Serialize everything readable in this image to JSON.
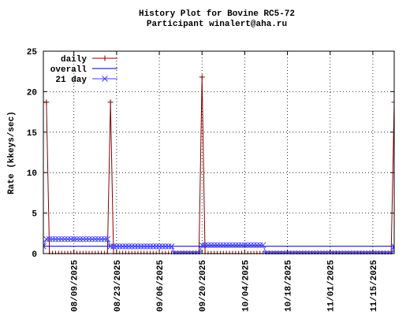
{
  "chart_data": {
    "type": "line",
    "title": "History Plot for Bovine RC5-72",
    "subtitle": "Participant winalert@aha.ru",
    "y_label": "Rate (kkeys/sec)",
    "xlim": [
      "07/30/2025",
      "11/22/2025"
    ],
    "xticks": [
      "08/09/2025",
      "08/23/2025",
      "09/06/2025",
      "09/20/2025",
      "10/04/2025",
      "10/18/2025",
      "11/01/2025",
      "11/15/2025"
    ],
    "ylim": [
      0,
      25
    ],
    "yticks": [
      0,
      5,
      10,
      15,
      20,
      25
    ],
    "grid": true,
    "legend": "top-left",
    "x": [
      "07/30/2025",
      "07/31/2025",
      "08/01/2025",
      "08/02/2025",
      "08/03/2025",
      "08/04/2025",
      "08/05/2025",
      "08/06/2025",
      "08/07/2025",
      "08/08/2025",
      "08/09/2025",
      "08/10/2025",
      "08/11/2025",
      "08/12/2025",
      "08/13/2025",
      "08/14/2025",
      "08/15/2025",
      "08/16/2025",
      "08/17/2025",
      "08/18/2025",
      "08/19/2025",
      "08/20/2025",
      "08/21/2025",
      "08/22/2025",
      "08/23/2025",
      "08/24/2025",
      "08/25/2025",
      "08/26/2025",
      "08/27/2025",
      "08/28/2025",
      "08/29/2025",
      "08/30/2025",
      "08/31/2025",
      "09/01/2025",
      "09/02/2025",
      "09/03/2025",
      "09/04/2025",
      "09/05/2025",
      "09/06/2025",
      "09/07/2025",
      "09/08/2025",
      "09/09/2025",
      "09/10/2025",
      "09/11/2025",
      "09/12/2025",
      "09/13/2025",
      "09/14/2025",
      "09/15/2025",
      "09/16/2025",
      "09/17/2025",
      "09/18/2025",
      "09/19/2025",
      "09/20/2025",
      "09/21/2025",
      "09/22/2025",
      "09/23/2025",
      "09/24/2025",
      "09/25/2025",
      "09/26/2025",
      "09/27/2025",
      "09/28/2025",
      "09/29/2025",
      "09/30/2025",
      "10/01/2025",
      "10/02/2025",
      "10/03/2025",
      "10/04/2025",
      "10/05/2025",
      "10/06/2025",
      "10/07/2025",
      "10/08/2025",
      "10/09/2025",
      "10/10/2025",
      "10/11/2025",
      "10/12/2025",
      "10/13/2025",
      "10/14/2025",
      "10/15/2025",
      "10/16/2025",
      "10/17/2025",
      "10/18/2025",
      "10/19/2025",
      "10/20/2025",
      "10/21/2025",
      "10/22/2025",
      "10/23/2025",
      "10/24/2025",
      "10/25/2025",
      "10/26/2025",
      "10/27/2025",
      "10/28/2025",
      "10/29/2025",
      "10/30/2025",
      "10/31/2025",
      "11/01/2025",
      "11/02/2025",
      "11/03/2025",
      "11/04/2025",
      "11/05/2025",
      "11/06/2025",
      "11/07/2025",
      "11/08/2025",
      "11/09/2025",
      "11/10/2025",
      "11/11/2025",
      "11/12/2025",
      "11/13/2025",
      "11/14/2025",
      "11/15/2025",
      "11/16/2025",
      "11/17/2025",
      "11/18/2025",
      "11/19/2025",
      "11/20/2025",
      "11/21/2025",
      "11/22/2025"
    ],
    "series": [
      {
        "name": "daily",
        "color": "#8b0000",
        "marker": "plus",
        "values": [
          18.7,
          18.7,
          0,
          0,
          0,
          0,
          0,
          0,
          0,
          0,
          0,
          0,
          0,
          0,
          0,
          0,
          0,
          0,
          0,
          0,
          0,
          0,
          18.7,
          0,
          0,
          0,
          0,
          0,
          0,
          0,
          0,
          0,
          0,
          0,
          0,
          0,
          0,
          0,
          0,
          0,
          0,
          0,
          0,
          0,
          0,
          0,
          0,
          0,
          0,
          0,
          0,
          0,
          21.8,
          0,
          0,
          0,
          0,
          0,
          0,
          0,
          0,
          0,
          0,
          0,
          0,
          0,
          0,
          0,
          0,
          0,
          0,
          0,
          0,
          0,
          0,
          0,
          0,
          0,
          0,
          0,
          0,
          0,
          0,
          0,
          0,
          0,
          0,
          0,
          0,
          0,
          0,
          0,
          0,
          0,
          0,
          0,
          0,
          0,
          0,
          0,
          0,
          0,
          0,
          0,
          0,
          0,
          0,
          0,
          0,
          0,
          0,
          0,
          0,
          0,
          0,
          18.7
        ]
      },
      {
        "name": "overall",
        "color": "#00008b",
        "marker": "none",
        "x": [
          "07/30/2025",
          "11/22/2025"
        ],
        "values": [
          0.9,
          0.9
        ]
      },
      {
        "name": "21 day",
        "color": "#4040ff",
        "marker": "cross",
        "values": [
          0.89,
          1.78,
          1.78,
          1.78,
          1.78,
          1.78,
          1.78,
          1.78,
          1.78,
          1.78,
          1.78,
          1.78,
          1.78,
          1.78,
          1.78,
          1.78,
          1.78,
          1.78,
          1.78,
          1.78,
          1.78,
          1.78,
          0.89,
          0.89,
          0.89,
          0.89,
          0.89,
          0.89,
          0.89,
          0.89,
          0.89,
          0.89,
          0.89,
          0.89,
          0.89,
          0.89,
          0.89,
          0.89,
          0.89,
          0.89,
          0.89,
          0.89,
          0.89,
          0,
          0,
          0,
          0,
          0,
          0,
          0,
          0,
          0,
          1.04,
          1.04,
          1.04,
          1.04,
          1.04,
          1.04,
          1.04,
          1.04,
          1.04,
          1.04,
          1.04,
          1.04,
          1.04,
          1.04,
          1.04,
          1.04,
          1.04,
          1.04,
          1.04,
          1.04,
          1.04,
          0,
          0,
          0,
          0,
          0,
          0,
          0,
          0,
          0,
          0,
          0,
          0,
          0,
          0,
          0,
          0,
          0,
          0,
          0,
          0,
          0,
          0,
          0,
          0,
          0,
          0,
          0,
          0,
          0,
          0,
          0,
          0,
          0,
          0,
          0,
          0,
          0,
          0,
          0,
          0,
          0,
          0,
          0.89
        ]
      }
    ]
  }
}
